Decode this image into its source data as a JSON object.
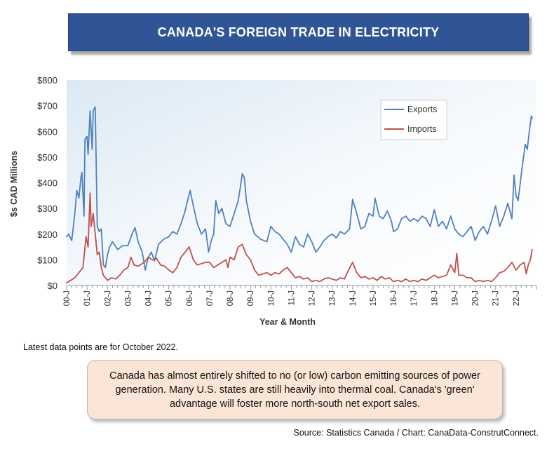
{
  "header": {
    "title": "CANADA'S FOREIGN TRADE IN ELECTRICITY"
  },
  "chart_data": {
    "type": "line",
    "title": "CANADA'S FOREIGN TRADE IN ELECTRICITY",
    "xlabel": "Year & Month",
    "ylabel": "$s CAD Millions",
    "ylim": [
      0,
      800
    ],
    "yticks": [
      "$0",
      "$100",
      "$200",
      "$300",
      "$400",
      "$500",
      "$600",
      "$700",
      "$800"
    ],
    "ytick_values": [
      0,
      100,
      200,
      300,
      400,
      500,
      600,
      700,
      800
    ],
    "xticks": [
      "00-J",
      "01-J",
      "02-J",
      "03-J",
      "04-J",
      "05-J",
      "06-J",
      "07-J",
      "08-J",
      "09-J",
      "10-J",
      "11-J",
      "12-J",
      "13-J",
      "14-J",
      "15-J",
      "16-J",
      "17-J",
      "18-J",
      "19-J",
      "20-J",
      "21-J",
      "22-J"
    ],
    "x_start": "2000-01",
    "x_end": "2022-10",
    "legend": "top-right",
    "series": [
      {
        "name": "Exports",
        "color": "#4f81bd",
        "values": [
          {
            "t": 0.0,
            "v": 190
          },
          {
            "t": 0.1,
            "v": 200
          },
          {
            "t": 0.25,
            "v": 175
          },
          {
            "t": 0.4,
            "v": 280
          },
          {
            "t": 0.5,
            "v": 370
          },
          {
            "t": 0.6,
            "v": 340
          },
          {
            "t": 0.7,
            "v": 420
          },
          {
            "t": 0.75,
            "v": 440
          },
          {
            "t": 0.85,
            "v": 270
          },
          {
            "t": 0.9,
            "v": 570
          },
          {
            "t": 1.0,
            "v": 580
          },
          {
            "t": 1.05,
            "v": 510
          },
          {
            "t": 1.15,
            "v": 680
          },
          {
            "t": 1.25,
            "v": 530
          },
          {
            "t": 1.3,
            "v": 680
          },
          {
            "t": 1.4,
            "v": 695
          },
          {
            "t": 1.5,
            "v": 230
          },
          {
            "t": 1.6,
            "v": 210
          },
          {
            "t": 1.7,
            "v": 220
          },
          {
            "t": 1.8,
            "v": 80
          },
          {
            "t": 1.9,
            "v": 70
          },
          {
            "t": 2.0,
            "v": 120
          },
          {
            "t": 2.1,
            "v": 150
          },
          {
            "t": 2.25,
            "v": 170
          },
          {
            "t": 2.5,
            "v": 140
          },
          {
            "t": 2.75,
            "v": 155
          },
          {
            "t": 3.0,
            "v": 155
          },
          {
            "t": 3.2,
            "v": 200
          },
          {
            "t": 3.35,
            "v": 225
          },
          {
            "t": 3.5,
            "v": 170
          },
          {
            "t": 3.7,
            "v": 130
          },
          {
            "t": 3.85,
            "v": 60
          },
          {
            "t": 4.0,
            "v": 110
          },
          {
            "t": 4.15,
            "v": 130
          },
          {
            "t": 4.3,
            "v": 95
          },
          {
            "t": 4.5,
            "v": 160
          },
          {
            "t": 4.75,
            "v": 180
          },
          {
            "t": 5.0,
            "v": 190
          },
          {
            "t": 5.2,
            "v": 210
          },
          {
            "t": 5.4,
            "v": 200
          },
          {
            "t": 5.6,
            "v": 240
          },
          {
            "t": 5.8,
            "v": 290
          },
          {
            "t": 5.95,
            "v": 340
          },
          {
            "t": 6.05,
            "v": 370
          },
          {
            "t": 6.2,
            "v": 310
          },
          {
            "t": 6.4,
            "v": 240
          },
          {
            "t": 6.6,
            "v": 200
          },
          {
            "t": 6.8,
            "v": 220
          },
          {
            "t": 6.95,
            "v": 130
          },
          {
            "t": 7.1,
            "v": 180
          },
          {
            "t": 7.2,
            "v": 200
          },
          {
            "t": 7.3,
            "v": 330
          },
          {
            "t": 7.45,
            "v": 280
          },
          {
            "t": 7.6,
            "v": 300
          },
          {
            "t": 7.8,
            "v": 240
          },
          {
            "t": 8.0,
            "v": 230
          },
          {
            "t": 8.2,
            "v": 280
          },
          {
            "t": 8.4,
            "v": 330
          },
          {
            "t": 8.5,
            "v": 380
          },
          {
            "t": 8.6,
            "v": 435
          },
          {
            "t": 8.7,
            "v": 420
          },
          {
            "t": 8.8,
            "v": 330
          },
          {
            "t": 9.0,
            "v": 250
          },
          {
            "t": 9.2,
            "v": 200
          },
          {
            "t": 9.5,
            "v": 180
          },
          {
            "t": 9.8,
            "v": 170
          },
          {
            "t": 10.0,
            "v": 230
          },
          {
            "t": 10.2,
            "v": 210
          },
          {
            "t": 10.4,
            "v": 200
          },
          {
            "t": 10.6,
            "v": 180
          },
          {
            "t": 10.8,
            "v": 160
          },
          {
            "t": 11.0,
            "v": 130
          },
          {
            "t": 11.2,
            "v": 190
          },
          {
            "t": 11.4,
            "v": 160
          },
          {
            "t": 11.6,
            "v": 150
          },
          {
            "t": 11.8,
            "v": 200
          },
          {
            "t": 12.0,
            "v": 170
          },
          {
            "t": 12.2,
            "v": 130
          },
          {
            "t": 12.4,
            "v": 150
          },
          {
            "t": 12.6,
            "v": 175
          },
          {
            "t": 12.8,
            "v": 190
          },
          {
            "t": 13.0,
            "v": 200
          },
          {
            "t": 13.2,
            "v": 185
          },
          {
            "t": 13.4,
            "v": 210
          },
          {
            "t": 13.6,
            "v": 200
          },
          {
            "t": 13.85,
            "v": 220
          },
          {
            "t": 14.0,
            "v": 335
          },
          {
            "t": 14.2,
            "v": 280
          },
          {
            "t": 14.4,
            "v": 220
          },
          {
            "t": 14.6,
            "v": 230
          },
          {
            "t": 14.8,
            "v": 280
          },
          {
            "t": 15.0,
            "v": 270
          },
          {
            "t": 15.1,
            "v": 340
          },
          {
            "t": 15.3,
            "v": 270
          },
          {
            "t": 15.5,
            "v": 260
          },
          {
            "t": 15.7,
            "v": 290
          },
          {
            "t": 15.9,
            "v": 250
          },
          {
            "t": 16.0,
            "v": 210
          },
          {
            "t": 16.2,
            "v": 220
          },
          {
            "t": 16.4,
            "v": 260
          },
          {
            "t": 16.6,
            "v": 270
          },
          {
            "t": 16.8,
            "v": 250
          },
          {
            "t": 17.0,
            "v": 260
          },
          {
            "t": 17.2,
            "v": 250
          },
          {
            "t": 17.4,
            "v": 270
          },
          {
            "t": 17.6,
            "v": 260
          },
          {
            "t": 17.8,
            "v": 230
          },
          {
            "t": 18.0,
            "v": 295
          },
          {
            "t": 18.2,
            "v": 230
          },
          {
            "t": 18.4,
            "v": 250
          },
          {
            "t": 18.6,
            "v": 220
          },
          {
            "t": 18.8,
            "v": 270
          },
          {
            "t": 19.0,
            "v": 220
          },
          {
            "t": 19.2,
            "v": 200
          },
          {
            "t": 19.4,
            "v": 190
          },
          {
            "t": 19.6,
            "v": 210
          },
          {
            "t": 19.8,
            "v": 230
          },
          {
            "t": 20.0,
            "v": 175
          },
          {
            "t": 20.2,
            "v": 210
          },
          {
            "t": 20.4,
            "v": 230
          },
          {
            "t": 20.6,
            "v": 200
          },
          {
            "t": 20.8,
            "v": 250
          },
          {
            "t": 21.0,
            "v": 310
          },
          {
            "t": 21.2,
            "v": 230
          },
          {
            "t": 21.4,
            "v": 270
          },
          {
            "t": 21.6,
            "v": 320
          },
          {
            "t": 21.8,
            "v": 260
          },
          {
            "t": 21.9,
            "v": 430
          },
          {
            "t": 22.0,
            "v": 350
          },
          {
            "t": 22.1,
            "v": 330
          },
          {
            "t": 22.3,
            "v": 460
          },
          {
            "t": 22.45,
            "v": 550
          },
          {
            "t": 22.55,
            "v": 530
          },
          {
            "t": 22.65,
            "v": 600
          },
          {
            "t": 22.75,
            "v": 660
          },
          {
            "t": 22.79,
            "v": 650
          }
        ]
      },
      {
        "name": "Imports",
        "color": "#c0504d",
        "values": [
          {
            "t": 0.0,
            "v": 10
          },
          {
            "t": 0.2,
            "v": 20
          },
          {
            "t": 0.4,
            "v": 30
          },
          {
            "t": 0.6,
            "v": 50
          },
          {
            "t": 0.8,
            "v": 70
          },
          {
            "t": 0.95,
            "v": 190
          },
          {
            "t": 1.05,
            "v": 150
          },
          {
            "t": 1.15,
            "v": 360
          },
          {
            "t": 1.2,
            "v": 230
          },
          {
            "t": 1.3,
            "v": 280
          },
          {
            "t": 1.4,
            "v": 200
          },
          {
            "t": 1.5,
            "v": 120
          },
          {
            "t": 1.6,
            "v": 130
          },
          {
            "t": 1.7,
            "v": 70
          },
          {
            "t": 1.8,
            "v": 40
          },
          {
            "t": 2.0,
            "v": 20
          },
          {
            "t": 2.2,
            "v": 30
          },
          {
            "t": 2.4,
            "v": 25
          },
          {
            "t": 2.6,
            "v": 40
          },
          {
            "t": 2.8,
            "v": 60
          },
          {
            "t": 3.0,
            "v": 70
          },
          {
            "t": 3.15,
            "v": 110
          },
          {
            "t": 3.3,
            "v": 80
          },
          {
            "t": 3.5,
            "v": 75
          },
          {
            "t": 3.8,
            "v": 90
          },
          {
            "t": 4.0,
            "v": 110
          },
          {
            "t": 4.2,
            "v": 100
          },
          {
            "t": 4.4,
            "v": 105
          },
          {
            "t": 4.6,
            "v": 80
          },
          {
            "t": 4.8,
            "v": 75
          },
          {
            "t": 5.0,
            "v": 60
          },
          {
            "t": 5.2,
            "v": 50
          },
          {
            "t": 5.4,
            "v": 70
          },
          {
            "t": 5.6,
            "v": 110
          },
          {
            "t": 5.8,
            "v": 130
          },
          {
            "t": 6.0,
            "v": 150
          },
          {
            "t": 6.2,
            "v": 100
          },
          {
            "t": 6.4,
            "v": 80
          },
          {
            "t": 6.6,
            "v": 85
          },
          {
            "t": 6.8,
            "v": 90
          },
          {
            "t": 7.0,
            "v": 90
          },
          {
            "t": 7.2,
            "v": 70
          },
          {
            "t": 7.4,
            "v": 80
          },
          {
            "t": 7.6,
            "v": 90
          },
          {
            "t": 7.8,
            "v": 100
          },
          {
            "t": 7.9,
            "v": 70
          },
          {
            "t": 8.0,
            "v": 110
          },
          {
            "t": 8.2,
            "v": 100
          },
          {
            "t": 8.4,
            "v": 150
          },
          {
            "t": 8.6,
            "v": 160
          },
          {
            "t": 8.8,
            "v": 120
          },
          {
            "t": 9.0,
            "v": 100
          },
          {
            "t": 9.2,
            "v": 60
          },
          {
            "t": 9.4,
            "v": 40
          },
          {
            "t": 9.6,
            "v": 45
          },
          {
            "t": 9.8,
            "v": 50
          },
          {
            "t": 10.0,
            "v": 40
          },
          {
            "t": 10.2,
            "v": 50
          },
          {
            "t": 10.4,
            "v": 45
          },
          {
            "t": 10.6,
            "v": 60
          },
          {
            "t": 10.8,
            "v": 70
          },
          {
            "t": 11.0,
            "v": 50
          },
          {
            "t": 11.2,
            "v": 30
          },
          {
            "t": 11.4,
            "v": 35
          },
          {
            "t": 11.6,
            "v": 25
          },
          {
            "t": 11.8,
            "v": 30
          },
          {
            "t": 12.0,
            "v": 15
          },
          {
            "t": 12.2,
            "v": 20
          },
          {
            "t": 12.4,
            "v": 15
          },
          {
            "t": 12.6,
            "v": 25
          },
          {
            "t": 12.8,
            "v": 30
          },
          {
            "t": 13.0,
            "v": 25
          },
          {
            "t": 13.2,
            "v": 20
          },
          {
            "t": 13.4,
            "v": 30
          },
          {
            "t": 13.6,
            "v": 25
          },
          {
            "t": 13.8,
            "v": 60
          },
          {
            "t": 14.0,
            "v": 90
          },
          {
            "t": 14.2,
            "v": 50
          },
          {
            "t": 14.4,
            "v": 30
          },
          {
            "t": 14.6,
            "v": 35
          },
          {
            "t": 14.8,
            "v": 25
          },
          {
            "t": 15.0,
            "v": 30
          },
          {
            "t": 15.2,
            "v": 20
          },
          {
            "t": 15.4,
            "v": 35
          },
          {
            "t": 15.6,
            "v": 25
          },
          {
            "t": 15.8,
            "v": 30
          },
          {
            "t": 16.0,
            "v": 15
          },
          {
            "t": 16.2,
            "v": 20
          },
          {
            "t": 16.4,
            "v": 15
          },
          {
            "t": 16.6,
            "v": 25
          },
          {
            "t": 16.8,
            "v": 15
          },
          {
            "t": 17.0,
            "v": 20
          },
          {
            "t": 17.2,
            "v": 15
          },
          {
            "t": 17.4,
            "v": 25
          },
          {
            "t": 17.6,
            "v": 20
          },
          {
            "t": 17.8,
            "v": 30
          },
          {
            "t": 18.0,
            "v": 40
          },
          {
            "t": 18.2,
            "v": 30
          },
          {
            "t": 18.4,
            "v": 35
          },
          {
            "t": 18.6,
            "v": 40
          },
          {
            "t": 18.8,
            "v": 80
          },
          {
            "t": 19.0,
            "v": 50
          },
          {
            "t": 19.1,
            "v": 125
          },
          {
            "t": 19.2,
            "v": 40
          },
          {
            "t": 19.4,
            "v": 40
          },
          {
            "t": 19.6,
            "v": 30
          },
          {
            "t": 19.8,
            "v": 30
          },
          {
            "t": 20.0,
            "v": 15
          },
          {
            "t": 20.2,
            "v": 20
          },
          {
            "t": 20.4,
            "v": 15
          },
          {
            "t": 20.6,
            "v": 20
          },
          {
            "t": 20.8,
            "v": 15
          },
          {
            "t": 21.0,
            "v": 30
          },
          {
            "t": 21.2,
            "v": 50
          },
          {
            "t": 21.4,
            "v": 55
          },
          {
            "t": 21.6,
            "v": 70
          },
          {
            "t": 21.8,
            "v": 90
          },
          {
            "t": 22.0,
            "v": 60
          },
          {
            "t": 22.2,
            "v": 80
          },
          {
            "t": 22.4,
            "v": 90
          },
          {
            "t": 22.5,
            "v": 45
          },
          {
            "t": 22.6,
            "v": 80
          },
          {
            "t": 22.7,
            "v": 100
          },
          {
            "t": 22.79,
            "v": 140
          }
        ]
      }
    ]
  },
  "notes": {
    "latest": "Latest data points are for October 2022.",
    "callout": "Canada has almost entirely shifted to no (or low) carbon emitting sources of power generation. Many U.S. states are still heavily into thermal coal. Canada's 'green' advantage will foster more north-south net export sales.",
    "source": "Source: Statistics Canada / Chart: CanaData-ConstrutConnect."
  }
}
